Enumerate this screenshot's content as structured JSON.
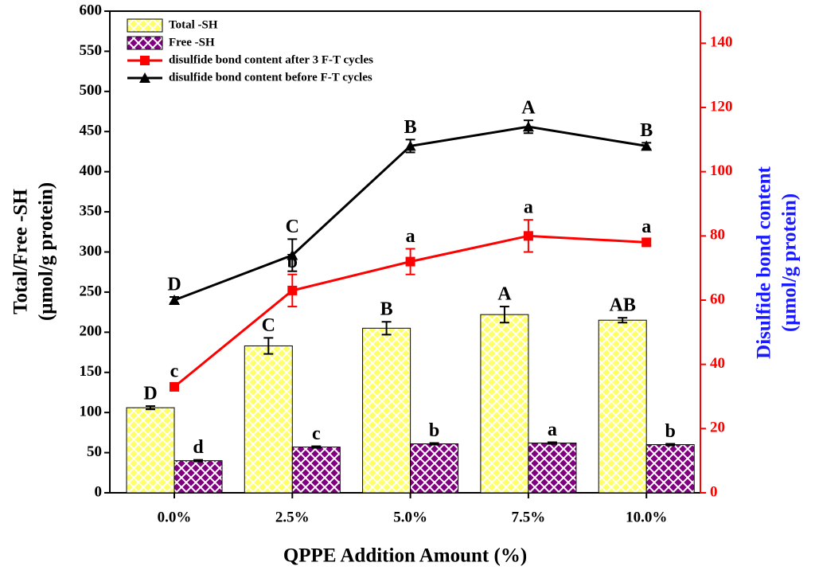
{
  "chart_data": {
    "type": "combo",
    "categories": [
      "0.0%",
      "2.5%",
      "5.0%",
      "7.5%",
      "10.0%"
    ],
    "x_label": "QPPE Addition Amount (%)",
    "y_label": [
      "Total/Free -SH",
      "(μmol/g protein)"
    ],
    "y2_label": [
      "Disulfide bond content",
      "(μmol/g protein)"
    ],
    "y2_label_color": "#1a1aff",
    "y2_axis_color": "#ff0000",
    "ylim": [
      0,
      600
    ],
    "yticks": [
      0,
      50,
      100,
      150,
      200,
      250,
      300,
      350,
      400,
      450,
      500,
      550,
      600
    ],
    "y2lim": [
      0,
      150
    ],
    "y2ticks": [
      0,
      20,
      40,
      60,
      80,
      100,
      120,
      140
    ],
    "legend": "upper left",
    "series": [
      {
        "name": "Total -SH",
        "type": "bar",
        "color": "#ffff66",
        "values": [
          106,
          183,
          205,
          222,
          215
        ],
        "errors": [
          2,
          10,
          8,
          10,
          3
        ],
        "labels": [
          "D",
          "C",
          "B",
          "A",
          "AB"
        ]
      },
      {
        "name": "Free -SH",
        "type": "bar",
        "color": "#800080",
        "values": [
          40,
          57,
          61,
          62,
          60
        ],
        "errors": [
          1,
          1,
          1,
          1,
          1
        ],
        "labels": [
          "d",
          "c",
          "b",
          "a",
          "b"
        ]
      },
      {
        "name": "disulfide bond content after 3 F-T cycles",
        "type": "line",
        "marker": "square",
        "axis": "y2",
        "color": "#ff0000",
        "values": [
          33,
          63,
          72,
          80,
          78
        ],
        "errors": [
          1,
          5,
          4,
          5,
          1
        ],
        "labels": [
          "c",
          "b",
          "a",
          "a",
          "a"
        ]
      },
      {
        "name": "disulfide bond content before F-T cycles",
        "type": "line",
        "marker": "triangle",
        "axis": "y2",
        "color": "#000000",
        "values": [
          60,
          74,
          108,
          114,
          108
        ],
        "errors": [
          1,
          5,
          2,
          2,
          1
        ],
        "labels": [
          "D",
          "C",
          "B",
          "A",
          "B"
        ]
      }
    ]
  }
}
